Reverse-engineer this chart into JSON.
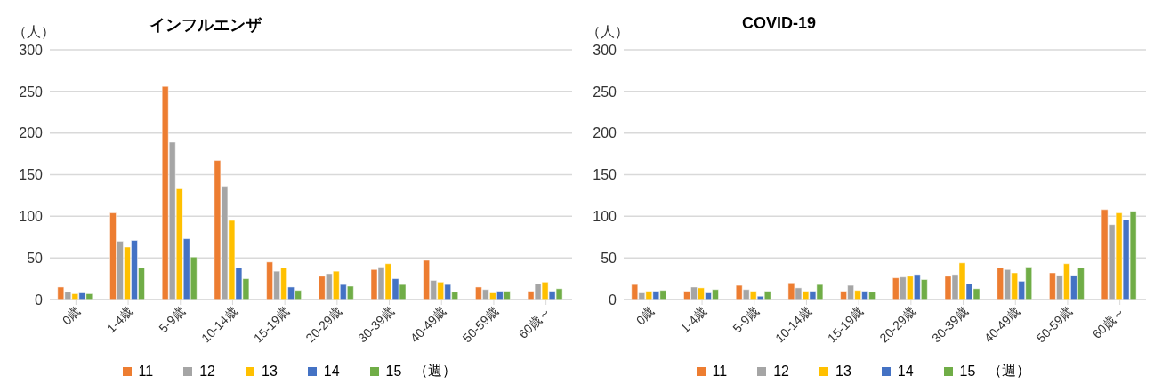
{
  "chart_data": [
    {
      "type": "bar",
      "title": "インフルエンザ",
      "ylabel": "（人）",
      "legend_title": "（週）",
      "categories": [
        "0歳",
        "1-4歳",
        "5-9歳",
        "10-14歳",
        "15-19歳",
        "20-29歳",
        "30-39歳",
        "40-49歳",
        "50-59歳",
        "60歳～"
      ],
      "series": [
        {
          "name": "11",
          "color": "#ed7d31",
          "values": [
            15,
            104,
            256,
            167,
            45,
            28,
            36,
            47,
            15,
            10
          ]
        },
        {
          "name": "12",
          "color": "#a5a5a5",
          "values": [
            9,
            70,
            189,
            136,
            34,
            31,
            39,
            23,
            12,
            19
          ]
        },
        {
          "name": "13",
          "color": "#ffc000",
          "values": [
            7,
            63,
            133,
            95,
            38,
            34,
            43,
            21,
            8,
            21
          ]
        },
        {
          "name": "14",
          "color": "#4472c4",
          "values": [
            8,
            71,
            73,
            38,
            15,
            18,
            25,
            18,
            10,
            10
          ]
        },
        {
          "name": "15",
          "color": "#70ad47",
          "values": [
            7,
            38,
            51,
            25,
            11,
            16,
            18,
            9,
            10,
            13
          ]
        }
      ],
      "ylim": [
        0,
        300
      ],
      "yticks": [
        0,
        50,
        100,
        150,
        200,
        250,
        300
      ],
      "grid": "y",
      "legend": "bottom"
    },
    {
      "type": "bar",
      "title": "COVID-19",
      "ylabel": "（人）",
      "legend_title": "（週）",
      "categories": [
        "0歳",
        "1-4歳",
        "5-9歳",
        "10-14歳",
        "15-19歳",
        "20-29歳",
        "30-39歳",
        "40-49歳",
        "50-59歳",
        "60歳～"
      ],
      "series": [
        {
          "name": "11",
          "color": "#ed7d31",
          "values": [
            18,
            10,
            17,
            20,
            10,
            26,
            28,
            38,
            32,
            108
          ]
        },
        {
          "name": "12",
          "color": "#a5a5a5",
          "values": [
            8,
            15,
            12,
            14,
            17,
            27,
            30,
            36,
            29,
            90
          ]
        },
        {
          "name": "13",
          "color": "#ffc000",
          "values": [
            10,
            14,
            10,
            10,
            11,
            28,
            44,
            32,
            43,
            104
          ]
        },
        {
          "name": "14",
          "color": "#4472c4",
          "values": [
            10,
            8,
            4,
            10,
            10,
            30,
            19,
            22,
            29,
            96
          ]
        },
        {
          "name": "15",
          "color": "#70ad47",
          "values": [
            11,
            12,
            10,
            18,
            9,
            24,
            13,
            39,
            38,
            106
          ]
        }
      ],
      "ylim": [
        0,
        300
      ],
      "yticks": [
        0,
        50,
        100,
        150,
        200,
        250,
        300
      ],
      "grid": "y",
      "legend": "bottom"
    }
  ]
}
